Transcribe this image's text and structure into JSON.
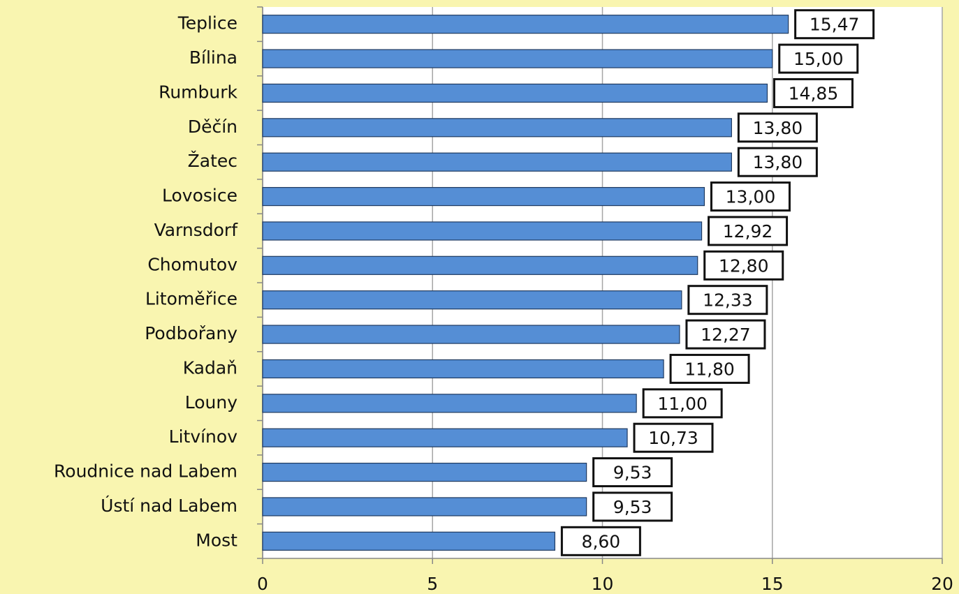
{
  "chart_data": {
    "type": "bar",
    "orientation": "horizontal",
    "categories": [
      "Teplice",
      "Bílina",
      "Rumburk",
      "Děčín",
      "Žatec",
      "Lovosice",
      "Varnsdorf",
      "Chomutov",
      "Litoměřice",
      "Podbořany",
      "Kadaň",
      "Louny",
      "Litvínov",
      "Roudnice nad Labem",
      "Ústí nad Labem",
      "Most"
    ],
    "values": [
      15.47,
      15.0,
      14.85,
      13.8,
      13.8,
      13.0,
      12.92,
      12.8,
      12.33,
      12.27,
      11.8,
      11.0,
      10.73,
      9.53,
      9.53,
      8.6
    ],
    "value_labels": [
      "15,47",
      "15,00",
      "14,85",
      "13,80",
      "13,80",
      "13,00",
      "12,92",
      "12,80",
      "12,33",
      "12,27",
      "11,80",
      "11,00",
      "10,73",
      "9,53",
      "9,53",
      "8,60"
    ],
    "color": "#558ed5",
    "xlim": [
      0,
      20
    ],
    "xticks": [
      0,
      5,
      10,
      15,
      20
    ],
    "grid": true
  }
}
